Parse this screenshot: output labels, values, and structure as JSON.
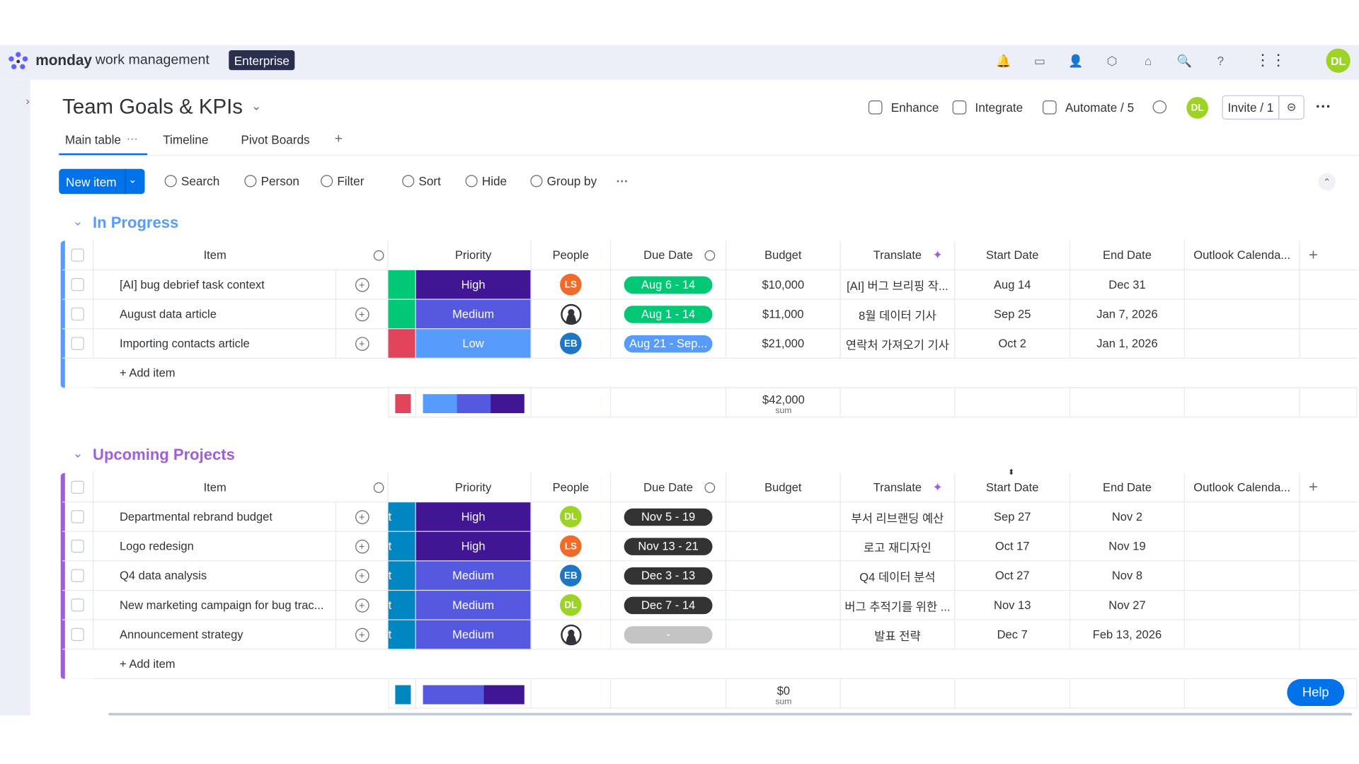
{
  "app": {
    "brand": "monday",
    "product": "work management",
    "plan": "Enterprise",
    "user_initials": "DL"
  },
  "board": {
    "title": "Team Goals & KPIs",
    "actions": [
      "Enhance",
      "Integrate",
      "Automate / 5"
    ],
    "user_initials": "DL",
    "invite": "Invite / 1"
  },
  "tabs": [
    "Main table",
    "Timeline",
    "Pivot Boards"
  ],
  "toolbar": {
    "new_item": "New item",
    "tools": [
      "Search",
      "Person",
      "Filter",
      "Sort",
      "Hide",
      "Group by"
    ]
  },
  "columns": {
    "item": "Item",
    "priority": "Priority",
    "people": "People",
    "due": "Due Date",
    "budget": "Budget",
    "translate": "Translate",
    "start": "Start Date",
    "end": "End Date",
    "outlook": "Outlook Calenda..."
  },
  "groups": [
    {
      "name": "In Progress",
      "color": "#579bfc",
      "summary_status_color": "#e2445c",
      "add_item": "+ Add item",
      "sum": "$42,000",
      "sum_label": "sum",
      "rows": [
        {
          "item": "[AI] bug debrief task context",
          "status_color": "#00c875",
          "priority": "High",
          "people": "LS",
          "people_color": "#f06a2a",
          "due": "Aug 6 - 14",
          "due_color": "#00c875",
          "budget": "$10,000",
          "translate": "[AI] 버그 브리핑 작...",
          "start": "Aug 14",
          "end": "Dec 31"
        },
        {
          "item": "August data article",
          "status_color": "#00c875",
          "priority": "Medium",
          "people": null,
          "people_color": null,
          "due": "Aug 1 - 14",
          "due_color": "#00c875",
          "budget": "$11,000",
          "translate": "8월 데이터 기사",
          "start": "Sep 25",
          "end": "Jan 7, 2026"
        },
        {
          "item": "Importing contacts article",
          "status_color": "#e2445c",
          "priority": "Low",
          "people": "EB",
          "people_color": "#1f76c2",
          "due": "Aug 21 - Sep...",
          "due_color": "#579bfc",
          "budget": "$21,000",
          "translate": "연락처 가져오기 기사",
          "start": "Oct 2",
          "end": "Jan 1, 2026"
        }
      ]
    },
    {
      "name": "Upcoming Projects",
      "color": "#a25ddc",
      "summary_status_color": "#0086c0",
      "add_item": "+ Add item",
      "sum": "$0",
      "sum_label": "sum",
      "rows": [
        {
          "item": "Departmental rebrand budget",
          "status_color": "#0086c0",
          "status": "t",
          "priority": "High",
          "people": "DL",
          "people_color": "#9cd326",
          "due": "Nov 5 - 19",
          "due_color": "#333333",
          "budget": null,
          "translate": "부서 리브랜딩 예산",
          "start": "Sep 27",
          "end": "Nov 2"
        },
        {
          "item": "Logo redesign",
          "status_color": "#0086c0",
          "status": "t",
          "priority": "High",
          "people": "LS",
          "people_color": "#f06a2a",
          "due": "Nov 13 - 21",
          "due_color": "#333333",
          "budget": null,
          "translate": "로고 재디자인",
          "start": "Oct 17",
          "end": "Nov 19"
        },
        {
          "item": "Q4 data analysis",
          "status_color": "#0086c0",
          "status": "t",
          "priority": "Medium",
          "people": "EB",
          "people_color": "#1f76c2",
          "due": "Dec 3 - 13",
          "due_color": "#333333",
          "budget": null,
          "translate": "Q4 데이터 분석",
          "start": "Oct 27",
          "end": "Nov 8"
        },
        {
          "item": "New marketing campaign for bug trac...",
          "status_color": "#0086c0",
          "status": "t",
          "priority": "Medium",
          "people": "DL",
          "people_color": "#9cd326",
          "due": "Dec 7 - 14",
          "due_color": "#333333",
          "budget": null,
          "translate": "버그 추적기를 위한 ...",
          "start": "Nov 13",
          "end": "Nov 27"
        },
        {
          "item": "Announcement strategy",
          "status_color": "#0086c0",
          "status": "t",
          "priority": "Medium",
          "people": null,
          "people_color": null,
          "due": "-",
          "due_color": "#c4c4c4",
          "budget": null,
          "translate": "발표 전략",
          "start": "Dec 7",
          "end": "Feb 13, 2026"
        }
      ]
    }
  ],
  "priority_colors": {
    "High": "#401694",
    "Medium": "#5559df",
    "Low": "#579bfc"
  },
  "help": "Help"
}
